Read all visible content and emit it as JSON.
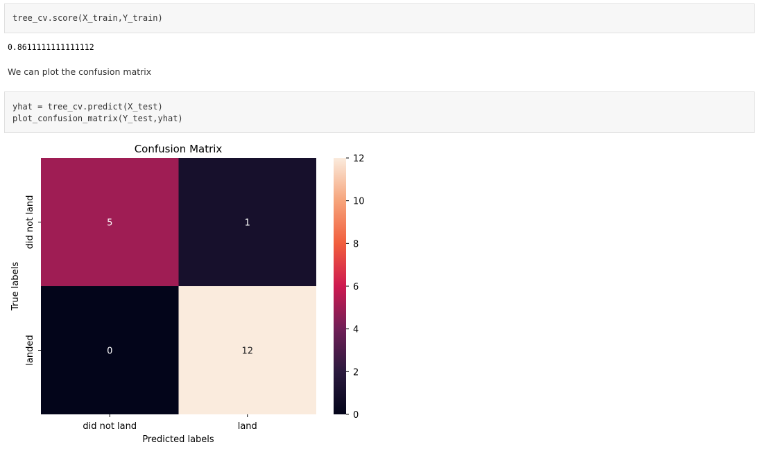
{
  "cells": {
    "cell1_code": [
      "tree_cv.score(X_train,Y_train)"
    ],
    "cell1_output": "0.8611111111111112",
    "markdown": "We can plot the confusion matrix",
    "cell2_code": [
      "yhat = tree_cv.predict(X_test)",
      "plot_confusion_matrix(Y_test,yhat)"
    ]
  },
  "chart_data": {
    "type": "heatmap",
    "title": "Confusion Matrix",
    "xlabel": "Predicted labels",
    "ylabel": "True labels",
    "x_categories": [
      "did not land",
      "land"
    ],
    "y_categories": [
      "did not land",
      "landed"
    ],
    "values": [
      [
        5,
        1
      ],
      [
        0,
        12
      ]
    ],
    "colorbar": {
      "min": 0,
      "max": 12,
      "ticks": [
        0,
        2,
        4,
        6,
        8,
        10,
        12
      ]
    },
    "colormap": "rocket"
  }
}
